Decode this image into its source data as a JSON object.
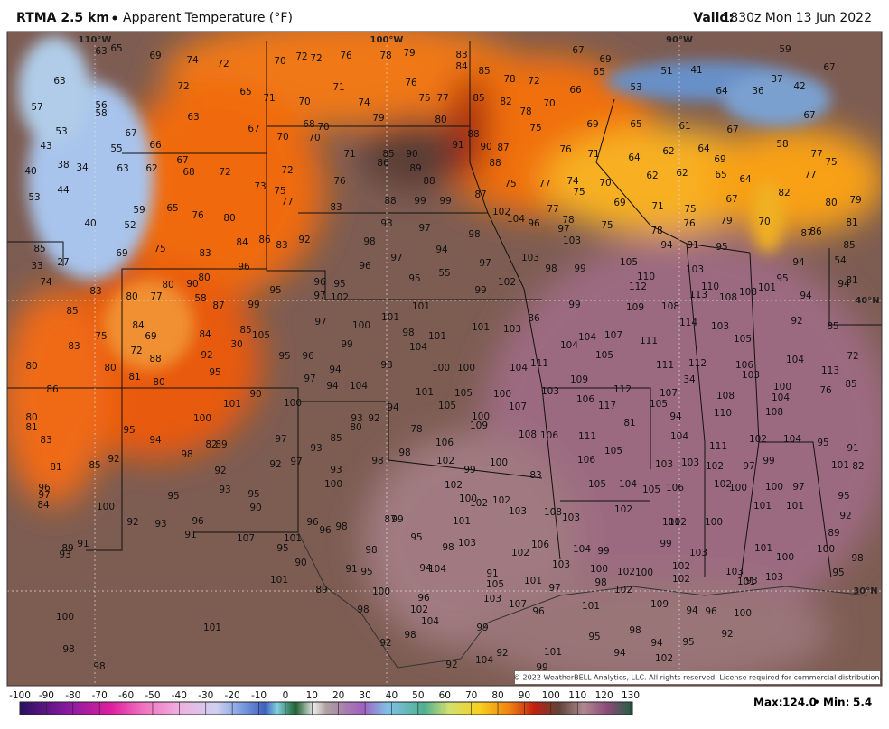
{
  "header": {
    "model": "RTMA 2.5 km",
    "field": "Apparent Temperature (°F)",
    "valid_label": "Valid:",
    "valid_time": "1830z Mon 13 Jun 2022"
  },
  "map": {
    "grid_labels": [
      "110°W",
      "100°W",
      "90°W",
      "40°N",
      "30°N"
    ],
    "copyright": "© 2022 WeatherBELL Analytics, LLC. All rights reserved. License required for commercial distribution.",
    "station_values": [
      63,
      65,
      69,
      74,
      72,
      70,
      72,
      72,
      76,
      78,
      79,
      83,
      84,
      85,
      67,
      69,
      65,
      51,
      41,
      59,
      67,
      37,
      42,
      36,
      64,
      53,
      63,
      72,
      65,
      71,
      70,
      71,
      74,
      76,
      75,
      77,
      85,
      82,
      78,
      72,
      70,
      66,
      57,
      56,
      58,
      63,
      67,
      79,
      80,
      78,
      75,
      69,
      65,
      61,
      67,
      58,
      67,
      53,
      67,
      66,
      70,
      68,
      70,
      70,
      91,
      90,
      87,
      88,
      43,
      55,
      85,
      90,
      89,
      88,
      88,
      76,
      71,
      64,
      62,
      64,
      69,
      77,
      75,
      40,
      38,
      34,
      63,
      62,
      67,
      68,
      72,
      72,
      71,
      86,
      76,
      62,
      62,
      65,
      77,
      53,
      44,
      73,
      75,
      77,
      88,
      99,
      99,
      87,
      75,
      77,
      74,
      75,
      70,
      69,
      71,
      67,
      64,
      82,
      80,
      79,
      59,
      65,
      76,
      80,
      83,
      102,
      104,
      77,
      78,
      75,
      75,
      76,
      79,
      70,
      81,
      40,
      52,
      93,
      97,
      98,
      96,
      97,
      103,
      78,
      94,
      91,
      95,
      87,
      86,
      85,
      85,
      84,
      86,
      83,
      92,
      98,
      94,
      97,
      103,
      98,
      99,
      105,
      110,
      103,
      95,
      94,
      54,
      69,
      75,
      83,
      96,
      96,
      97,
      95,
      55,
      33,
      27,
      74,
      80,
      80,
      90,
      95,
      96,
      95,
      97,
      102,
      99,
      102,
      112,
      110,
      113,
      108,
      108,
      101,
      94,
      94,
      81,
      83,
      80,
      77,
      58,
      87,
      99,
      101,
      99,
      109,
      108,
      92,
      97,
      100,
      101,
      98,
      101,
      101,
      103,
      86,
      84,
      69,
      84,
      85,
      105,
      114,
      103,
      85,
      75,
      85,
      83,
      72,
      88,
      30,
      92,
      95,
      96,
      99,
      104,
      104,
      104,
      107,
      111,
      105,
      105,
      111,
      112,
      106,
      104,
      72,
      80,
      80,
      81,
      80,
      95,
      94,
      97,
      98,
      100,
      100,
      104,
      111,
      103,
      113,
      34,
      94,
      104,
      109,
      100,
      85,
      86,
      90,
      100,
      101,
      105,
      100,
      103,
      106,
      112,
      107,
      104,
      76,
      101,
      105,
      107,
      117,
      105,
      108,
      110,
      108,
      94,
      94,
      93,
      92,
      80,
      80,
      81,
      100,
      100,
      109,
      81,
      95,
      78,
      83,
      94,
      97,
      106,
      106,
      108,
      111,
      104,
      102,
      104,
      95,
      91,
      93,
      85,
      82,
      89,
      98,
      98,
      102,
      106,
      105,
      111,
      103,
      103,
      102,
      97,
      99,
      101,
      82,
      81,
      85,
      92,
      92,
      97,
      98,
      99,
      100,
      83,
      92,
      93,
      100,
      102,
      105,
      104,
      105,
      106,
      102,
      100,
      100,
      97,
      95,
      96,
      97,
      84,
      93,
      95,
      90,
      95,
      100,
      100,
      102,
      102,
      103,
      108,
      103,
      102,
      101,
      101,
      92,
      92,
      93,
      96,
      96,
      96,
      98,
      87,
      99,
      101,
      101,
      102,
      100,
      89,
      91,
      89,
      93,
      91,
      107,
      101,
      95,
      95,
      98,
      98,
      103,
      102,
      106,
      104,
      99,
      99,
      103,
      101,
      100,
      98,
      90,
      91,
      95,
      94,
      104,
      103,
      100,
      102,
      100,
      102,
      103,
      100,
      91,
      101,
      105,
      101,
      98,
      102,
      101,
      103,
      95,
      89,
      100,
      103,
      97,
      102,
      93,
      96,
      98,
      102,
      107,
      96,
      101,
      109,
      94,
      96,
      100,
      100,
      104,
      99,
      98,
      92,
      101,
      98,
      95,
      94,
      95,
      98,
      92,
      92,
      101,
      94,
      102,
      104,
      92,
      99,
      98
    ]
  },
  "colorbar": {
    "ticks": [
      -100,
      -90,
      -80,
      -70,
      -60,
      -50,
      -40,
      -30,
      -20,
      -10,
      0,
      10,
      20,
      30,
      40,
      50,
      60,
      70,
      80,
      90,
      100,
      110,
      120,
      130
    ]
  },
  "stats": {
    "max_label": "Max:",
    "max": "124.0",
    "min_label": "Min:",
    "min": 5.4
  }
}
